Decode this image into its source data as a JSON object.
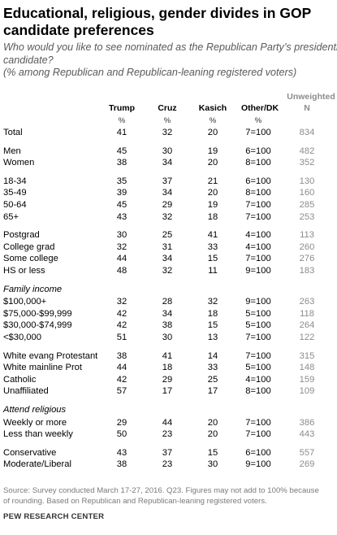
{
  "title_lines": [
    "Educational, religious, gender divides in GOP",
    "candidate preferences"
  ],
  "subtitle_lines": [
    "Who would you like to see nominated as the Republican Party’s presidential",
    "candidate?",
    "(% among Republican and Republican-leaning registered voters)"
  ],
  "headers": {
    "trump": "Trump",
    "cruz": "Cruz",
    "kasich": "Kasich",
    "other": "Other/DK",
    "unw1": "Unweighted",
    "unw2": "N"
  },
  "pct_symbol": "%",
  "chart_data": {
    "type": "table",
    "title": "Educational, religious, gender divides in GOP candidate preferences",
    "columns": [
      "Trump",
      "Cruz",
      "Kasich",
      "Other/DK",
      "Unweighted N"
    ],
    "units": "%",
    "groups": [
      {
        "heading": "",
        "rows": [
          {
            "label": "Total",
            "trump": "41",
            "cruz": "32",
            "kasich": "20",
            "other": "7=100",
            "n": "834"
          }
        ]
      },
      {
        "heading": "",
        "rows": [
          {
            "label": "Men",
            "trump": "45",
            "cruz": "30",
            "kasich": "19",
            "other": "6=100",
            "n": "482"
          },
          {
            "label": "Women",
            "trump": "38",
            "cruz": "34",
            "kasich": "20",
            "other": "8=100",
            "n": "352"
          }
        ]
      },
      {
        "heading": "",
        "rows": [
          {
            "label": "18-34",
            "trump": "35",
            "cruz": "37",
            "kasich": "21",
            "other": "6=100",
            "n": "130"
          },
          {
            "label": "35-49",
            "trump": "39",
            "cruz": "34",
            "kasich": "20",
            "other": "8=100",
            "n": "160"
          },
          {
            "label": "50-64",
            "trump": "45",
            "cruz": "29",
            "kasich": "19",
            "other": "7=100",
            "n": "285"
          },
          {
            "label": "65+",
            "trump": "43",
            "cruz": "32",
            "kasich": "18",
            "other": "7=100",
            "n": "253"
          }
        ]
      },
      {
        "heading": "",
        "rows": [
          {
            "label": "Postgrad",
            "trump": "30",
            "cruz": "25",
            "kasich": "41",
            "other": "4=100",
            "n": "113"
          },
          {
            "label": "College grad",
            "trump": "32",
            "cruz": "31",
            "kasich": "33",
            "other": "4=100",
            "n": "260"
          },
          {
            "label": "Some college",
            "trump": "44",
            "cruz": "34",
            "kasich": "15",
            "other": "7=100",
            "n": "276"
          },
          {
            "label": "HS or less",
            "trump": "48",
            "cruz": "32",
            "kasich": "11",
            "other": "9=100",
            "n": "183"
          }
        ]
      },
      {
        "heading": "Family income",
        "rows": [
          {
            "label": "$100,000+",
            "trump": "32",
            "cruz": "28",
            "kasich": "32",
            "other": "9=100",
            "n": "263"
          },
          {
            "label": "$75,000-$99,999",
            "trump": "42",
            "cruz": "34",
            "kasich": "18",
            "other": "5=100",
            "n": "118"
          },
          {
            "label": "$30,000-$74,999",
            "trump": "42",
            "cruz": "38",
            "kasich": "15",
            "other": "5=100",
            "n": "264"
          },
          {
            "label": "<$30,000",
            "trump": "51",
            "cruz": "30",
            "kasich": "13",
            "other": "7=100",
            "n": "122"
          }
        ]
      },
      {
        "heading": "",
        "rows": [
          {
            "label": "White evang Protestant",
            "trump": "38",
            "cruz": "41",
            "kasich": "14",
            "other": "7=100",
            "n": "315"
          },
          {
            "label": "White mainline Prot",
            "trump": "44",
            "cruz": "18",
            "kasich": "33",
            "other": "5=100",
            "n": "148"
          },
          {
            "label": "Catholic",
            "trump": "42",
            "cruz": "29",
            "kasich": "25",
            "other": "4=100",
            "n": "159"
          },
          {
            "label": "Unaffiliated",
            "trump": "57",
            "cruz": "17",
            "kasich": "17",
            "other": "8=100",
            "n": "109"
          }
        ]
      },
      {
        "heading": "Attend religious",
        "rows": [
          {
            "label": "Weekly or more",
            "trump": "29",
            "cruz": "44",
            "kasich": "20",
            "other": "7=100",
            "n": "386"
          },
          {
            "label": "Less than weekly",
            "trump": "50",
            "cruz": "23",
            "kasich": "20",
            "other": "7=100",
            "n": "443"
          }
        ]
      },
      {
        "heading": "",
        "rows": [
          {
            "label": "Conservative",
            "trump": "43",
            "cruz": "37",
            "kasich": "15",
            "other": "6=100",
            "n": "557"
          },
          {
            "label": "Moderate/Liberal",
            "trump": "38",
            "cruz": "23",
            "kasich": "30",
            "other": "9=100",
            "n": "269"
          }
        ]
      }
    ]
  },
  "footnote_lines": [
    "Source: Survey conducted March 17-27, 2016. Q23. Figures may not add to 100% because",
    "of rounding. Based on Republican and Republican-leaning registered voters."
  ],
  "brand": "PEW RESEARCH CENTER"
}
